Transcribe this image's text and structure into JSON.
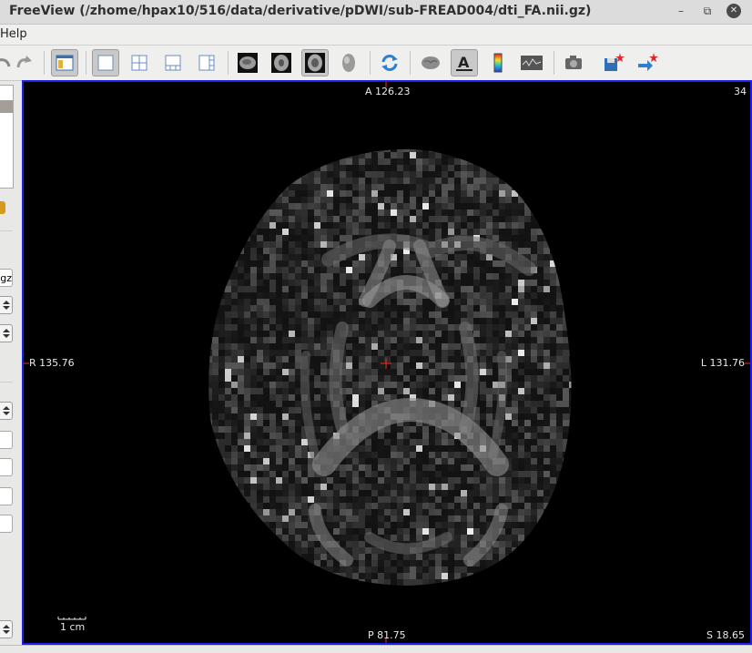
{
  "window": {
    "title": "FreeView (/zhome/hpax10/516/data/derivative/pDWI/sub-FREAD004/dti_FA.nii.gz)"
  },
  "menu": {
    "help_label": "Help"
  },
  "toolbar": {
    "icons": [
      "redo-icon",
      "toggle-panel-icon",
      "layout-1x1-icon",
      "layout-2x2-icon",
      "layout-1-3-icon",
      "layout-1-3-horizontal-icon",
      "sagittal-view-icon",
      "coronal-view-icon",
      "axial-view-icon",
      "3d-view-icon",
      "reset-view-icon",
      "surface-icon",
      "annotation-text-icon",
      "colorbar-icon",
      "histogram-icon",
      "snapshot-camera-icon",
      "save-point-icon",
      "goto-point-icon"
    ]
  },
  "left_panel": {
    "file_field_suffix": "gz"
  },
  "viewer": {
    "top_label": "A 126.23",
    "bottom_label": "P 81.75",
    "left_label": "R 135.76",
    "right_label": "L 131.76",
    "slice_number": "34",
    "slice_coordinate": "S 18.65",
    "scale_bar_label": "1 cm",
    "image_description": "axial brain FA map"
  }
}
